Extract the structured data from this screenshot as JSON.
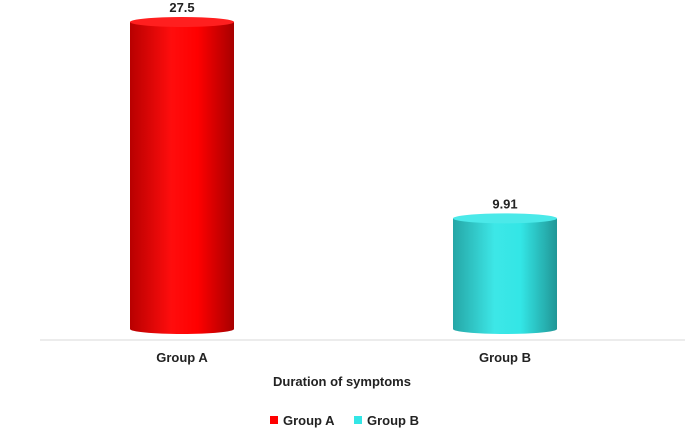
{
  "chart_data": {
    "type": "bar",
    "style": "cylinder",
    "categories": [
      "Group A",
      "Group B"
    ],
    "values": [
      27.5,
      9.91
    ],
    "data_labels": [
      "27.5",
      "9.91"
    ],
    "colors": [
      "#ff0000",
      "#33e6e6"
    ],
    "xlabel": "Duration of symptoms",
    "ylim": [
      0,
      27.5
    ],
    "grid": false,
    "legend": {
      "placement": "bottom",
      "entries": [
        {
          "label": "Group A",
          "color": "#ff0000"
        },
        {
          "label": "Group B",
          "color": "#33e6e6"
        }
      ]
    }
  }
}
